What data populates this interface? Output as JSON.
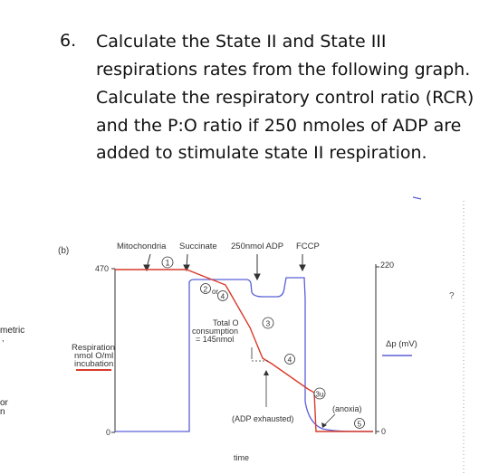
{
  "question": {
    "number": "6.",
    "lines": [
      "Calculate the State II and State III",
      "respirations rates from the following graph.",
      "Calculate the respiratory control ratio (RCR)",
      "and the P:O ratio if 250 nmoles of ADP are",
      "added to stimulate state II respiration."
    ]
  },
  "figure": {
    "panel_label": "(b)",
    "additions": {
      "mitochondria": "Mitochondria",
      "succinate": "Succinate",
      "adp": "250nmol ADP",
      "fccp": "FCCP"
    },
    "circled": {
      "c1": "1",
      "c2": "2",
      "or": "or",
      "c4a": "4",
      "c3": "3",
      "c4b": "4",
      "c3u": "3u",
      "c5": "5"
    },
    "left_axis": {
      "top": "470",
      "bottom": "0",
      "label_line1": "Respiration",
      "label_line2": "nmol O/ml",
      "label_line3": "incubation"
    },
    "right_axis": {
      "top": "220",
      "bottom": "0",
      "label": "Δp (mV)"
    },
    "annotation_total_line1": "Total O",
    "annotation_total_line2": "consumption",
    "annotation_total_line3": "= 145nmol",
    "adp_exhausted": "(ADP exhausted)",
    "anoxia": "(anoxia)",
    "x_label": "time",
    "edge_left_1": "metric",
    "edge_left_2": "or",
    "edge_left_3": "n",
    "edge_right": "?"
  },
  "colors": {
    "respiration_line": "#d93a2a",
    "delta_p_line": "#5b5fd6",
    "axis": "#333333"
  }
}
